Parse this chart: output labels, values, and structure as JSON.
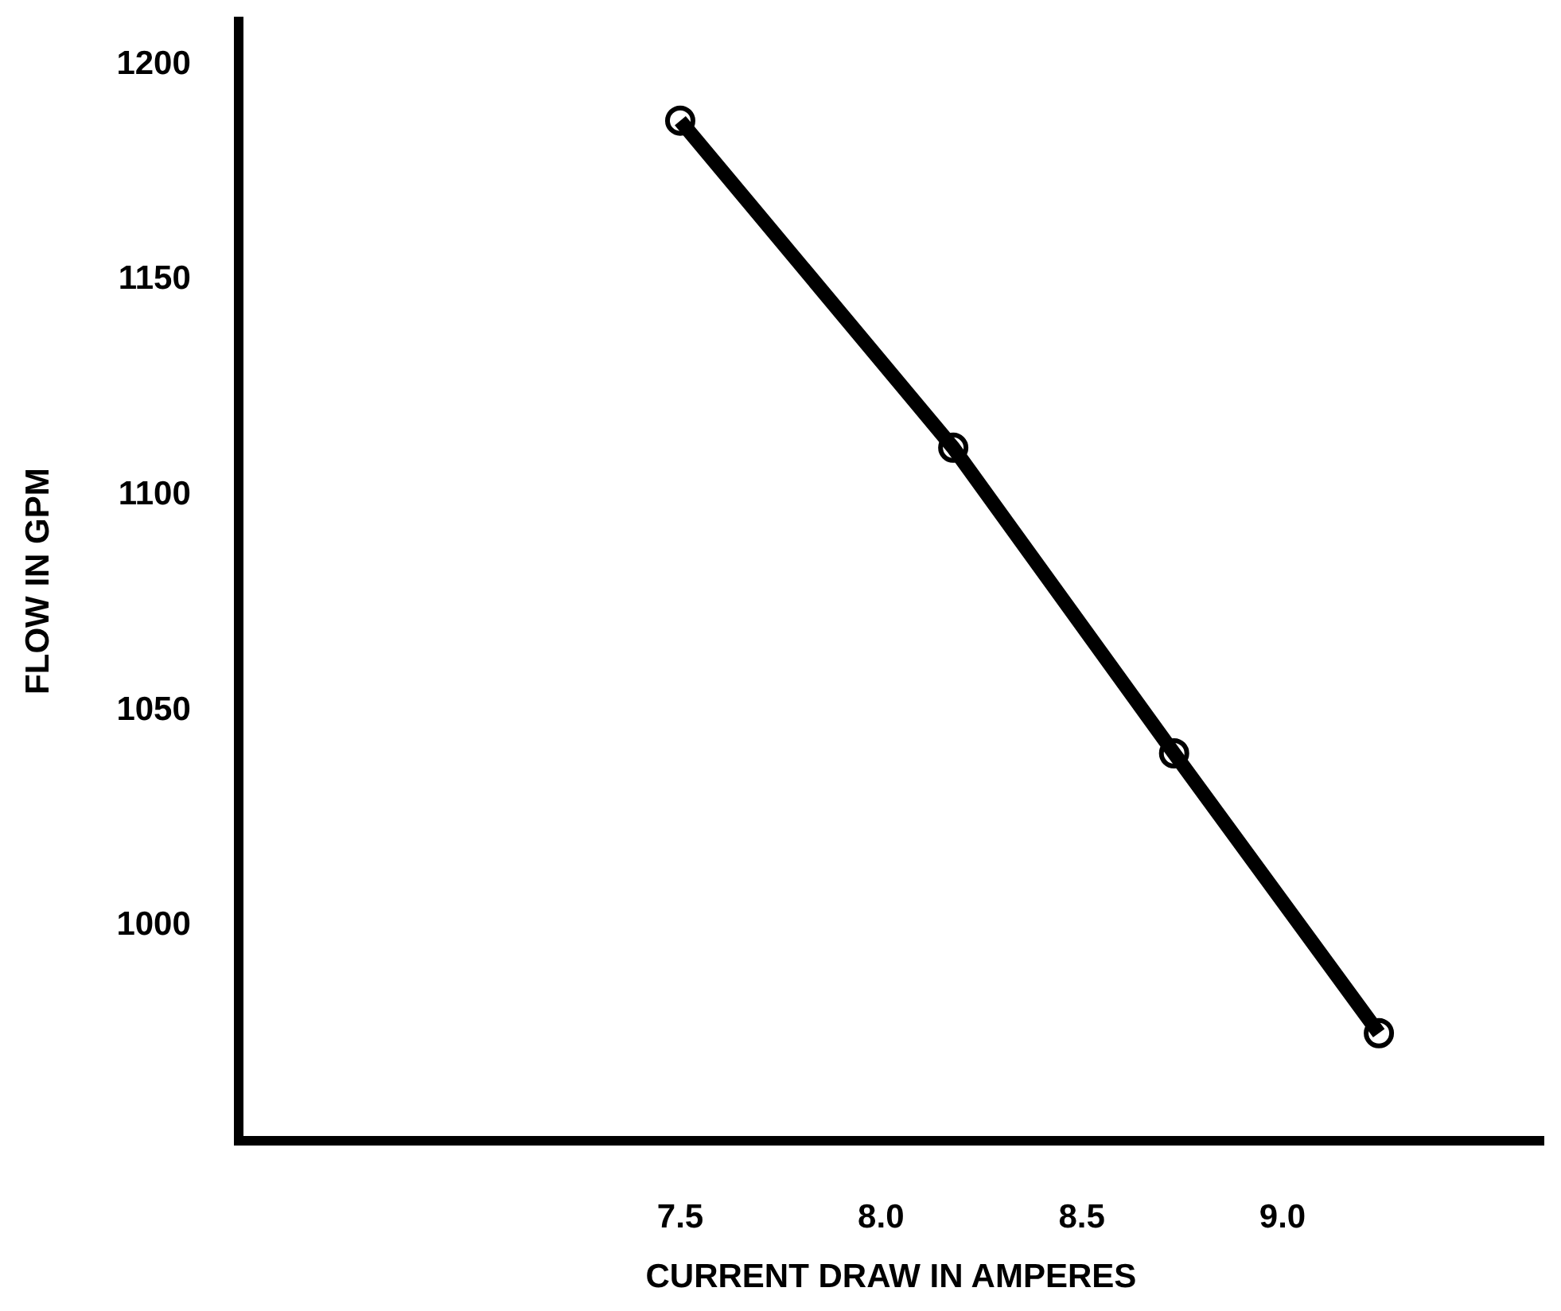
{
  "chart_data": {
    "type": "line",
    "xlabel": "CURRENT DRAW IN AMPERES",
    "ylabel": "FLOW IN GPM",
    "x": [
      7.5,
      8.18,
      8.73,
      9.24
    ],
    "series": [
      {
        "color": "#000000",
        "values": [
          1187,
          1111,
          1040,
          975
        ]
      }
    ],
    "xlim": [
      6.4,
      9.65
    ],
    "xticks": [
      {
        "value": 7.5,
        "label": "7.5"
      },
      {
        "value": 8,
        "label": "8.0"
      },
      {
        "value": 8.5,
        "label": "8.5"
      },
      {
        "value": 9,
        "label": "9.0"
      }
    ],
    "ylim": [
      950,
      1210
    ],
    "yticks": [
      1000,
      1050,
      1100,
      1150,
      1200
    ],
    "grid": false,
    "legend": false,
    "marker": "circle",
    "line_style": "solid"
  }
}
